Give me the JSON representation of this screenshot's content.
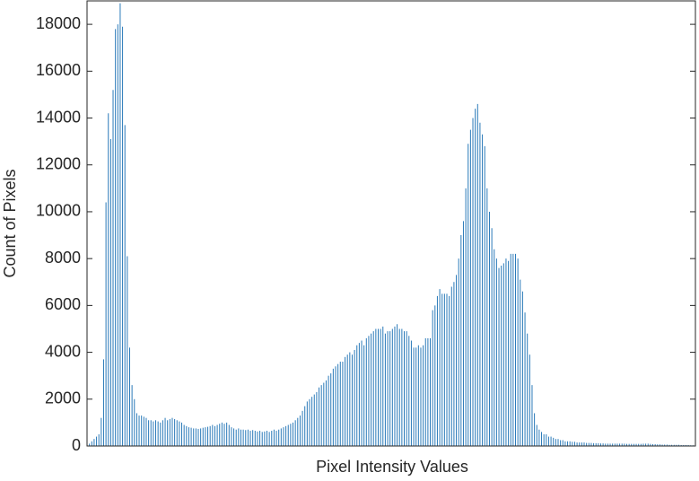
{
  "chart_data": {
    "type": "bar",
    "x_label": "Pixel Intensity Values",
    "y_label": "Count of Pixels",
    "color": "#2a7ab9",
    "xlim": [
      -1,
      256
    ],
    "ylim": [
      0,
      19000
    ],
    "yticks": [
      0,
      2000,
      4000,
      6000,
      8000,
      10000,
      12000,
      14000,
      16000,
      18000
    ],
    "x": [
      0,
      1,
      2,
      3,
      4,
      5,
      6,
      7,
      8,
      9,
      10,
      11,
      12,
      13,
      14,
      15,
      16,
      17,
      18,
      19,
      20,
      21,
      22,
      23,
      24,
      25,
      26,
      27,
      28,
      29,
      30,
      31,
      32,
      33,
      34,
      35,
      36,
      37,
      38,
      39,
      40,
      41,
      42,
      43,
      44,
      45,
      46,
      47,
      48,
      49,
      50,
      51,
      52,
      53,
      54,
      55,
      56,
      57,
      58,
      59,
      60,
      61,
      62,
      63,
      64,
      65,
      66,
      67,
      68,
      69,
      70,
      71,
      72,
      73,
      74,
      75,
      76,
      77,
      78,
      79,
      80,
      81,
      82,
      83,
      84,
      85,
      86,
      87,
      88,
      89,
      90,
      91,
      92,
      93,
      94,
      95,
      96,
      97,
      98,
      99,
      100,
      101,
      102,
      103,
      104,
      105,
      106,
      107,
      108,
      109,
      110,
      111,
      112,
      113,
      114,
      115,
      116,
      117,
      118,
      119,
      120,
      121,
      122,
      123,
      124,
      125,
      126,
      127,
      128,
      129,
      130,
      131,
      132,
      133,
      134,
      135,
      136,
      137,
      138,
      139,
      140,
      141,
      142,
      143,
      144,
      145,
      146,
      147,
      148,
      149,
      150,
      151,
      152,
      153,
      154,
      155,
      156,
      157,
      158,
      159,
      160,
      161,
      162,
      163,
      164,
      165,
      166,
      167,
      168,
      169,
      170,
      171,
      172,
      173,
      174,
      175,
      176,
      177,
      178,
      179,
      180,
      181,
      182,
      183,
      184,
      185,
      186,
      187,
      188,
      189,
      190,
      191,
      192,
      193,
      194,
      195,
      196,
      197,
      198,
      199,
      200,
      201,
      202,
      203,
      204,
      205,
      206,
      207,
      208,
      209,
      210,
      211,
      212,
      213,
      214,
      215,
      216,
      217,
      218,
      219,
      220,
      221,
      222,
      223,
      224,
      225,
      226,
      227,
      228,
      229,
      230,
      231,
      232,
      233,
      234,
      235,
      236,
      237,
      238,
      239,
      240,
      241,
      242,
      243,
      244,
      245,
      246,
      247,
      248,
      249,
      250,
      251,
      252,
      253,
      254,
      255
    ],
    "values": [
      100,
      200,
      300,
      400,
      500,
      1200,
      3700,
      10400,
      14200,
      13100,
      15200,
      17800,
      18000,
      18900,
      17900,
      13700,
      8100,
      4200,
      2600,
      2000,
      1400,
      1300,
      1300,
      1250,
      1200,
      1100,
      1100,
      1050,
      1100,
      1050,
      1000,
      1100,
      1200,
      1100,
      1150,
      1200,
      1150,
      1100,
      1050,
      1000,
      900,
      850,
      800,
      780,
      750,
      750,
      730,
      750,
      780,
      800,
      820,
      850,
      900,
      850,
      900,
      950,
      1000,
      950,
      1000,
      900,
      800,
      750,
      700,
      750,
      700,
      700,
      680,
      700,
      650,
      680,
      650,
      620,
      650,
      600,
      620,
      650,
      600,
      650,
      700,
      650,
      700,
      750,
      800,
      850,
      900,
      950,
      1000,
      1100,
      1200,
      1300,
      1500,
      1700,
      1900,
      2000,
      2100,
      2200,
      2300,
      2500,
      2600,
      2700,
      2800,
      3000,
      3100,
      3300,
      3400,
      3500,
      3600,
      3600,
      3800,
      3900,
      4000,
      3900,
      4100,
      4300,
      4400,
      4500,
      4300,
      4600,
      4700,
      4800,
      4900,
      5000,
      5000,
      5000,
      5100,
      4800,
      4900,
      4900,
      5000,
      5100,
      5200,
      5000,
      5000,
      4900,
      4900,
      4700,
      4500,
      4200,
      4200,
      4300,
      4200,
      4300,
      4600,
      4600,
      4600,
      5800,
      6000,
      6400,
      6700,
      6500,
      6500,
      6500,
      6400,
      6800,
      7000,
      7300,
      8000,
      9000,
      9600,
      11000,
      12900,
      13500,
      14000,
      14400,
      14600,
      13800,
      13300,
      12800,
      11000,
      10000,
      9300,
      8400,
      8000,
      7600,
      7700,
      7800,
      8000,
      7900,
      8200,
      8200,
      8200,
      8000,
      7100,
      6600,
      5700,
      4800,
      3900,
      2600,
      1400,
      900,
      700,
      600,
      500,
      500,
      400,
      400,
      350,
      300,
      300,
      250,
      250,
      200,
      200,
      200,
      180,
      180,
      150,
      150,
      150,
      150,
      130,
      130,
      130,
      120,
      120,
      120,
      110,
      110,
      100,
      100,
      100,
      100,
      100,
      100,
      100,
      100,
      100,
      90,
      90,
      90,
      90,
      90,
      90,
      90,
      100,
      100,
      100,
      90,
      80,
      80,
      70,
      70,
      60,
      60,
      60,
      50,
      50,
      50,
      50,
      50,
      40,
      40,
      40,
      40,
      30,
      30
    ]
  }
}
